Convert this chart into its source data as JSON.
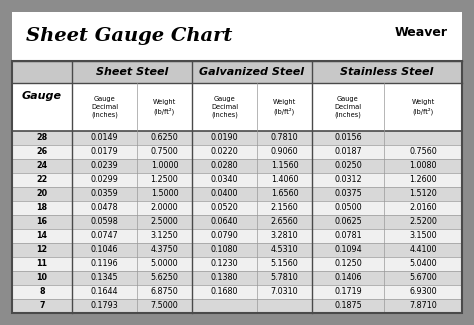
{
  "title": "Sheet Gauge Chart",
  "bg_outer": "#8c8c8c",
  "bg_white": "#ffffff",
  "bg_title": "#f0f0f0",
  "bg_header_dark": "#c8c8c8",
  "bg_row_dark": "#d8d8d8",
  "bg_row_light": "#f0f0f0",
  "border_dark": "#4a4a4a",
  "border_light": "#999999",
  "gauges": [
    28,
    26,
    24,
    22,
    20,
    18,
    16,
    14,
    12,
    11,
    10,
    8,
    7
  ],
  "sheet_steel_decimal": [
    "0.0149",
    "0.0179",
    "0.0239",
    "0.0299",
    "0.0359",
    "0.0478",
    "0.0598",
    "0.0747",
    "0.1046",
    "0.1196",
    "0.1345",
    "0.1644",
    "0.1793"
  ],
  "sheet_steel_weight": [
    "0.6250",
    "0.7500",
    "1.0000",
    "1.2500",
    "1.5000",
    "2.0000",
    "2.5000",
    "3.1250",
    "4.3750",
    "5.0000",
    "5.6250",
    "6.8750",
    "7.5000"
  ],
  "galv_steel_decimal": [
    "0.0190",
    "0.0220",
    "0.0280",
    "0.0340",
    "0.0400",
    "0.0520",
    "0.0640",
    "0.0790",
    "0.1080",
    "0.1230",
    "0.1380",
    "0.1680",
    ""
  ],
  "galv_steel_weight": [
    "0.7810",
    "0.9060",
    "1.1560",
    "1.4060",
    "1.6560",
    "2.1560",
    "2.6560",
    "3.2810",
    "4.5310",
    "5.1560",
    "5.7810",
    "7.0310",
    ""
  ],
  "stainless_decimal": [
    "0.0156",
    "0.0187",
    "0.0250",
    "0.0312",
    "0.0375",
    "0.0500",
    "0.0625",
    "0.0781",
    "0.1094",
    "0.1250",
    "0.1406",
    "0.1719",
    "0.1875"
  ],
  "stainless_weight": [
    "",
    "0.7560",
    "1.0080",
    "1.2600",
    "1.5120",
    "2.0160",
    "2.5200",
    "3.1500",
    "4.4100",
    "5.0400",
    "5.6700",
    "6.9300",
    "7.8710"
  ],
  "figsize": [
    4.74,
    3.25
  ],
  "dpi": 100
}
